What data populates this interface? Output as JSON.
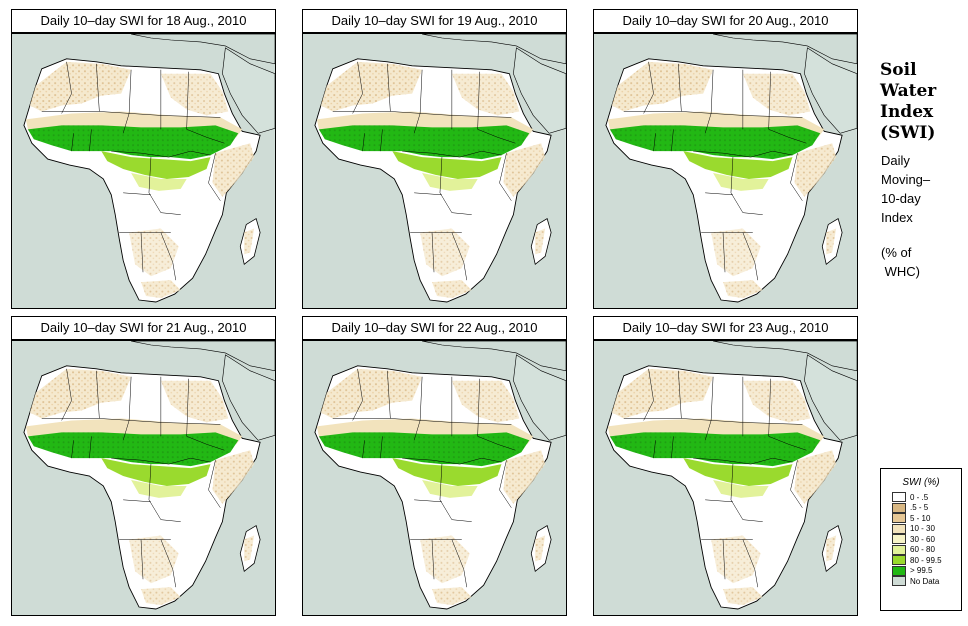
{
  "panels": [
    {
      "title": "Daily 10–day SWI for  18 Aug., 2010"
    },
    {
      "title": "Daily 10–day SWI for  19 Aug., 2010"
    },
    {
      "title": "Daily 10–day SWI for  20 Aug., 2010"
    },
    {
      "title": "Daily 10–day SWI for  21 Aug., 2010"
    },
    {
      "title": "Daily 10–day SWI for  22 Aug., 2010"
    },
    {
      "title": "Daily 10–day SWI for  23 Aug., 2010"
    }
  ],
  "side": {
    "title_lines": [
      "Soil",
      "Water",
      "Index",
      "(SWI)"
    ],
    "desc_lines": [
      "Daily",
      "Moving–",
      "10-day",
      "Index"
    ],
    "unit_lines": [
      "(% of",
      " WHC)"
    ]
  },
  "legend": {
    "title": "SWI (%)",
    "items": [
      {
        "label": "0 - .5",
        "color": "#ffffff"
      },
      {
        "label": ".5 - 5",
        "color": "#d9b884"
      },
      {
        "label": "5 - 10",
        "color": "#e6c795"
      },
      {
        "label": "10 - 30",
        "color": "#f2e3bd"
      },
      {
        "label": "30 - 60",
        "color": "#f7f4c8"
      },
      {
        "label": "60 - 80",
        "color": "#e2f29a"
      },
      {
        "label": "80 - 99.5",
        "color": "#9ada2e"
      },
      {
        "label": "> 99.5",
        "color": "#22b814"
      },
      {
        "label": "No Data",
        "color": "#cfdcd6"
      }
    ]
  }
}
